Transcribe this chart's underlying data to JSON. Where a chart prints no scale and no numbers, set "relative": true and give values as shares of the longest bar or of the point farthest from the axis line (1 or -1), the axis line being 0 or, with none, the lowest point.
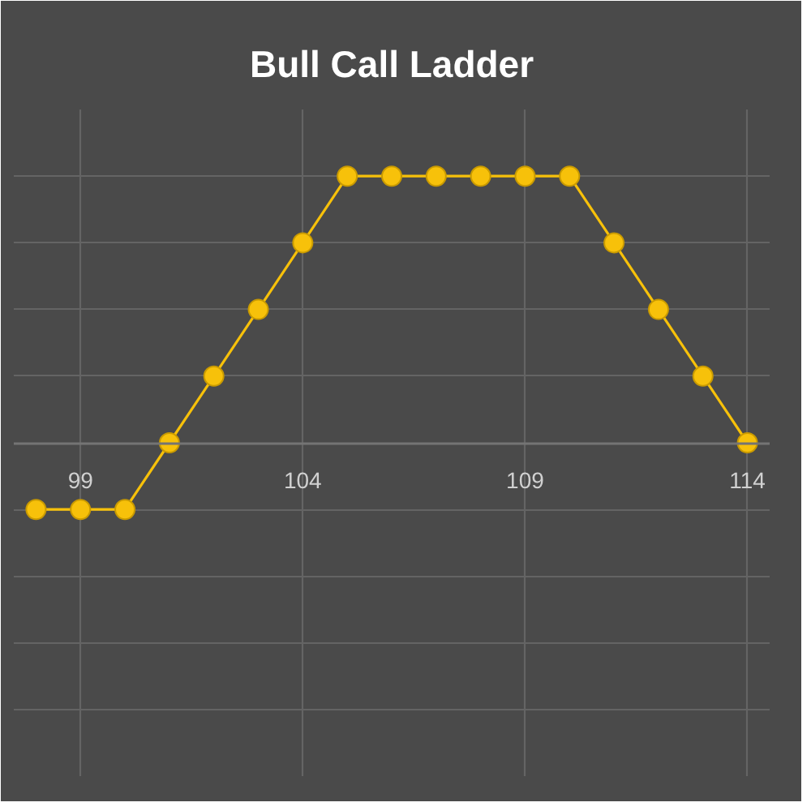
{
  "chart_data": {
    "type": "line",
    "title": "Bull Call Ladder",
    "x": [
      98,
      99,
      100,
      101,
      102,
      103,
      104,
      105,
      106,
      107,
      108,
      109,
      110,
      111,
      112,
      113,
      114
    ],
    "series": [
      {
        "color": "#f7c10a",
        "values": [
          -0.25,
          -0.25,
          -0.25,
          0,
          0.25,
          0.5,
          0.75,
          1,
          1,
          1,
          1,
          1,
          1,
          0.75,
          0.5,
          0.25,
          0
        ]
      }
    ],
    "relative": true,
    "xlim": [
      97.5,
      114.5
    ],
    "xticks": [
      99,
      104,
      109,
      114
    ],
    "grid": true,
    "marker": "circle",
    "line_style": "solid"
  }
}
